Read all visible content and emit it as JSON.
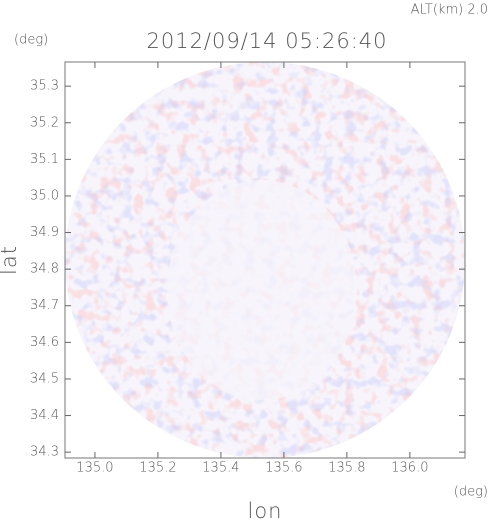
{
  "chart_data": {
    "type": "heatmap",
    "title": "2012/09/14 05:26:40",
    "annotation": "ALT(km) 2.0",
    "xlabel": "lon",
    "ylabel": "lat",
    "xunit": "(deg)",
    "yunit": "(deg)",
    "xlim": [
      134.905,
      136.175
    ],
    "ylim": [
      34.284,
      35.366
    ],
    "xticks": [
      {
        "value": 135.0,
        "label": "135.0"
      },
      135.2,
      135.4,
      135.6,
      135.8,
      {
        "value": 136.0,
        "label": "136.0"
      }
    ],
    "yticks": [
      34.3,
      34.4,
      34.5,
      34.6,
      34.7,
      34.8,
      34.9,
      {
        "value": 35.0,
        "label": "35.0"
      },
      35.1,
      35.2,
      35.3
    ]
  }
}
